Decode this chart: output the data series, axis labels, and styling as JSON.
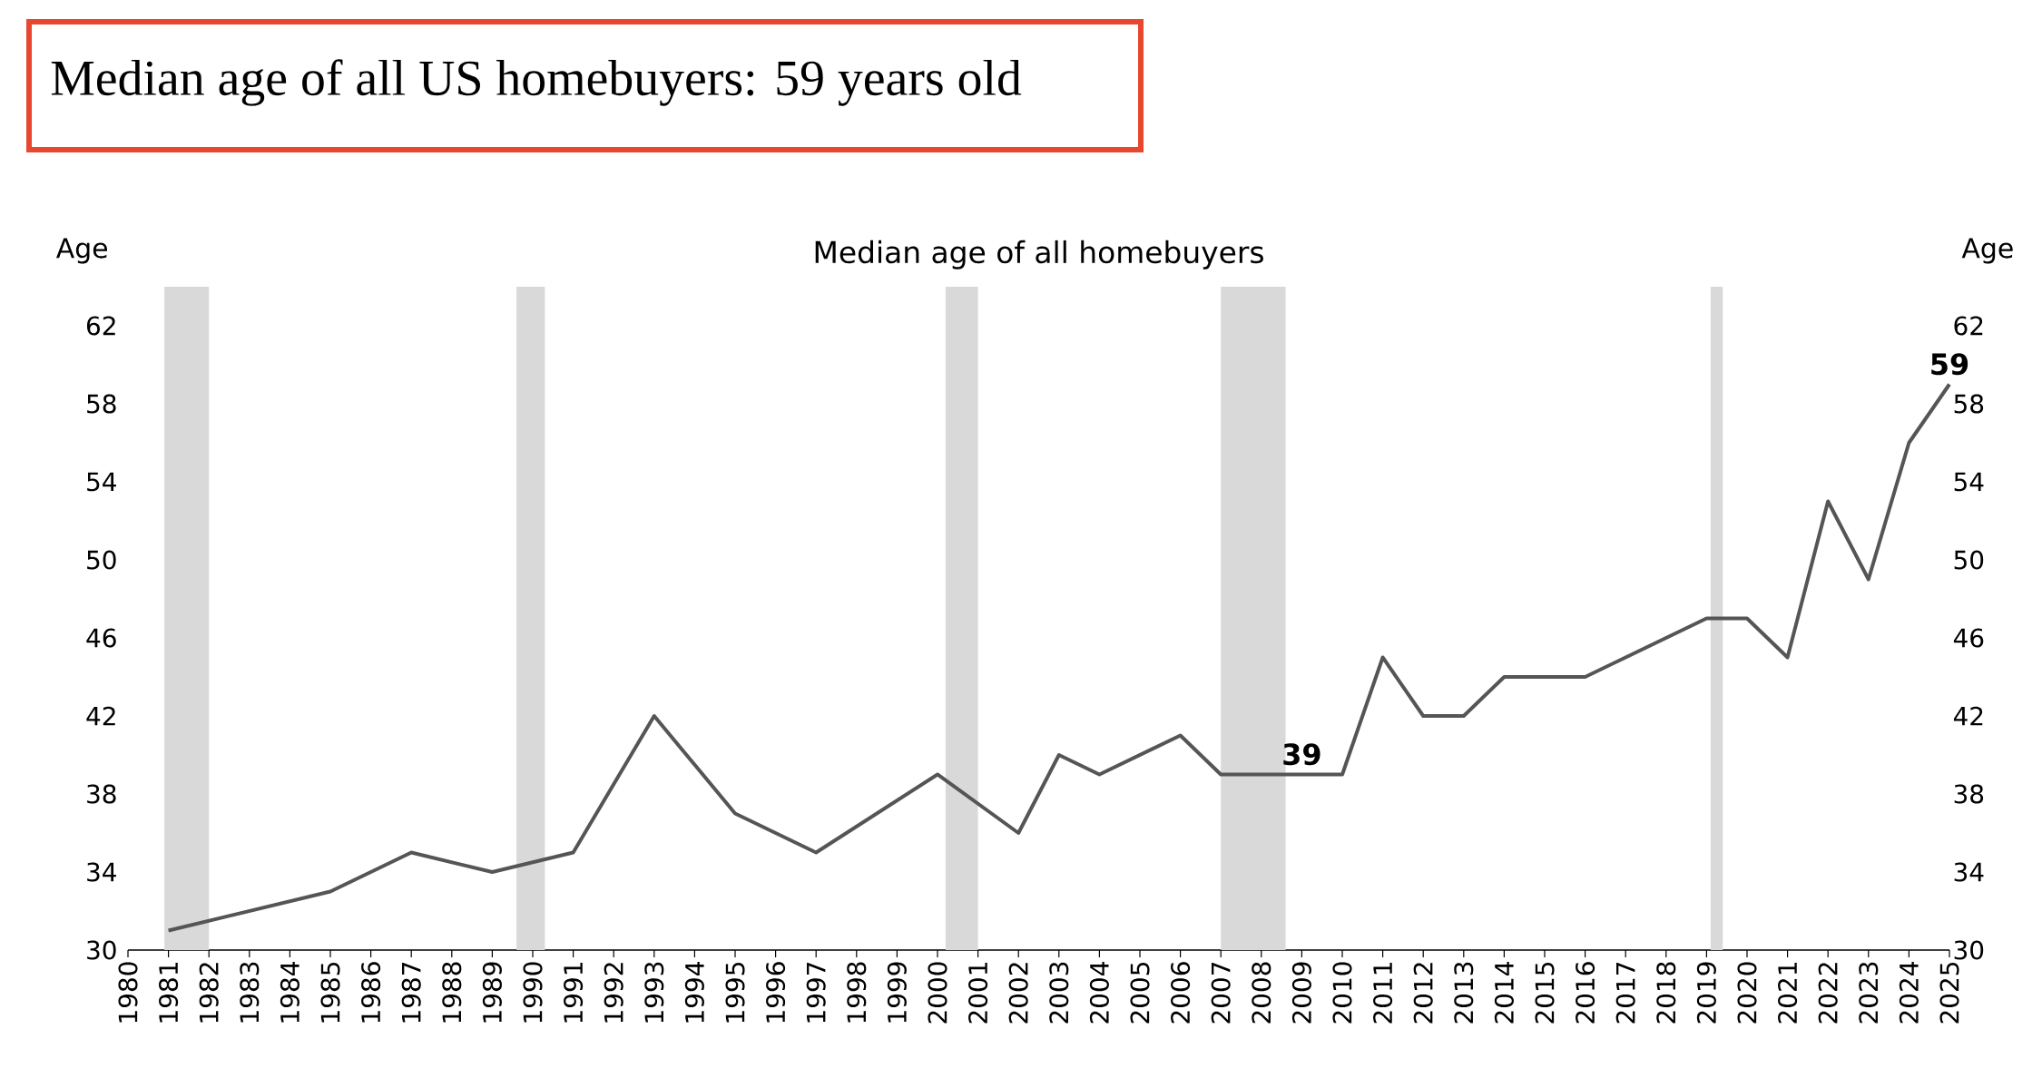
{
  "chart_data": {
    "type": "line",
    "title": "Median age of all US homebuyers: 59 years old",
    "subtitle": "Median age of all homebuyers",
    "ylabel": "Age",
    "y2label": "Age",
    "x": [
      1981,
      1985,
      1987,
      1989,
      1991,
      1993,
      1995,
      1997,
      2000,
      2002,
      2003,
      2004,
      2006,
      2007,
      2008,
      2009,
      2010,
      2011,
      2012,
      2013,
      2014,
      2015,
      2016,
      2017,
      2018,
      2019,
      2020,
      2021,
      2022,
      2023,
      2024,
      2025
    ],
    "values": [
      31,
      33,
      35,
      34,
      35,
      42,
      37,
      35,
      39,
      36,
      40,
      39,
      41,
      39,
      39,
      39,
      39,
      45,
      42,
      42,
      44,
      44,
      44,
      45,
      46,
      47,
      47,
      45,
      53,
      49,
      56,
      59
    ],
    "value_labels": [
      null,
      null,
      null,
      null,
      null,
      null,
      null,
      null,
      null,
      null,
      null,
      null,
      null,
      null,
      null,
      "39",
      null,
      null,
      null,
      null,
      null,
      null,
      null,
      null,
      null,
      null,
      null,
      null,
      null,
      null,
      null,
      "59"
    ],
    "color": "#555555",
    "line_style": "solid",
    "xlim": [
      1980,
      2025
    ],
    "xticks": [
      1980,
      1981,
      1982,
      1983,
      1984,
      1985,
      1986,
      1987,
      1988,
      1989,
      1990,
      1991,
      1992,
      1993,
      1994,
      1995,
      1996,
      1997,
      1998,
      1999,
      2000,
      2001,
      2002,
      2003,
      2004,
      2005,
      2006,
      2007,
      2008,
      2009,
      2010,
      2011,
      2012,
      2013,
      2014,
      2015,
      2016,
      2017,
      2018,
      2019,
      2020,
      2021,
      2022,
      2023,
      2024,
      2025
    ],
    "ylim": [
      30,
      62
    ],
    "yticks": [
      30,
      34,
      38,
      42,
      46,
      50,
      54,
      58,
      62
    ],
    "y2lim": [
      30,
      62
    ],
    "y2ticks": [
      30,
      34,
      38,
      42,
      46,
      50,
      54,
      58,
      62
    ],
    "bands": [
      {
        "axis": "x",
        "from": 1980.9,
        "to": 1982.0,
        "color": "#d9d9d9"
      },
      {
        "axis": "x",
        "from": 1989.6,
        "to": 1990.3,
        "color": "#d9d9d9"
      },
      {
        "axis": "x",
        "from": 2000.2,
        "to": 2001.0,
        "color": "#d9d9d9"
      },
      {
        "axis": "x",
        "from": 2007.0,
        "to": 2008.6,
        "color": "#d9d9d9"
      },
      {
        "axis": "x",
        "from": 2019.1,
        "to": 2019.4,
        "color": "#d9d9d9"
      }
    ]
  }
}
